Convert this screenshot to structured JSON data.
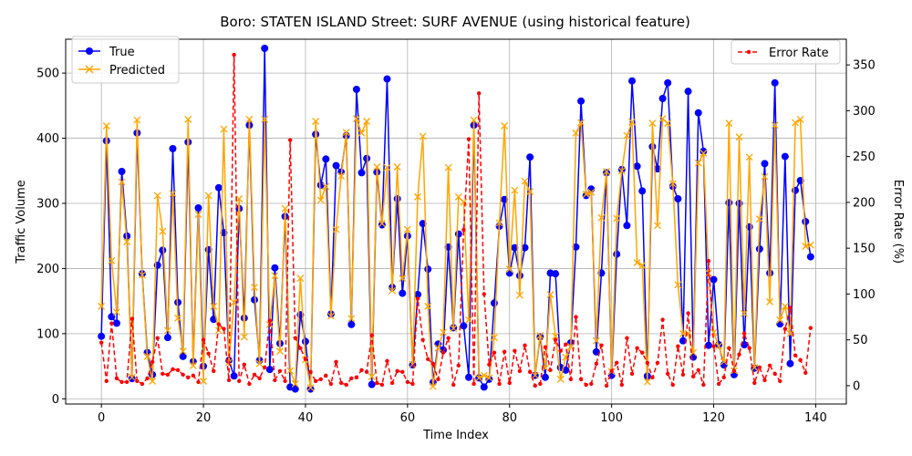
{
  "chart_data": {
    "type": "line",
    "title": "Boro: STATEN ISLAND Street: SURF AVENUE (using historical feature)",
    "xlabel": "Time Index",
    "ylabel": "Traffic Volume",
    "y2label": "Error Rate (%)",
    "xlim": [
      -7,
      146
    ],
    "ylim": [
      -8,
      552
    ],
    "y2lim": [
      -20,
      378
    ],
    "xticks": [
      0,
      20,
      40,
      60,
      80,
      100,
      120,
      140
    ],
    "yticks": [
      0,
      100,
      200,
      300,
      400,
      500
    ],
    "y2ticks": [
      0,
      50,
      100,
      150,
      200,
      250,
      300,
      350
    ],
    "grid": true,
    "legend_left": "upper-left",
    "legend_right": "upper-right",
    "series": [
      {
        "name": "True",
        "axis": "left",
        "color": "#0000ff",
        "style": "solid",
        "marker": "circle",
        "values": [
          96,
          396,
          126,
          116,
          349,
          250,
          31,
          408,
          192,
          71,
          37,
          205,
          228,
          94,
          384,
          148,
          65,
          394,
          57,
          293,
          50,
          229,
          122,
          324,
          255,
          59,
          35,
          292,
          124,
          420,
          152,
          59,
          538,
          45,
          201,
          85,
          280,
          18,
          15,
          129,
          88,
          15,
          406,
          328,
          368,
          130,
          358,
          348,
          404,
          114,
          475,
          347,
          369,
          22,
          348,
          267,
          491,
          171,
          307,
          162,
          250,
          52,
          160,
          269,
          199,
          25,
          84,
          75,
          233,
          109,
          253,
          112,
          33,
          420,
          32,
          18,
          30,
          147,
          265,
          306,
          193,
          232,
          189,
          232,
          371,
          36,
          95,
          33,
          193,
          192,
          48,
          44,
          86,
          233,
          457,
          312,
          322,
          72,
          193,
          347,
          36,
          222,
          352,
          266,
          488,
          357,
          319,
          35,
          387,
          353,
          461,
          485,
          326,
          307,
          89,
          472,
          64,
          439,
          380,
          82,
          183,
          83,
          52,
          301,
          37,
          300,
          83,
          264,
          47,
          230,
          361,
          193,
          485,
          115,
          372,
          54,
          320,
          335,
          272,
          218
        ]
      },
      {
        "name": "Predicted",
        "axis": "left",
        "color": "#ffa500",
        "style": "solid",
        "marker": "x",
        "values": [
          142,
          419,
          212,
          133,
          333,
          241,
          33,
          428,
          190,
          65,
          27,
          312,
          257,
          105,
          315,
          124,
          73,
          429,
          51,
          283,
          27,
          312,
          142,
          105,
          414,
          56,
          148,
          307,
          95,
          429,
          171,
          54,
          429,
          114,
          189,
          73,
          292,
          43,
          23,
          185,
          60,
          17,
          426,
          305,
          326,
          127,
          260,
          342,
          409,
          123,
          430,
          408,
          426,
          34,
          356,
          269,
          355,
          166,
          356,
          185,
          260,
          53,
          310,
          403,
          142,
          19,
          78,
          102,
          355,
          108,
          310,
          302,
          121,
          428,
          32,
          36,
          32,
          94,
          270,
          419,
          199,
          320,
          159,
          334,
          318,
          36,
          97,
          47,
          160,
          96,
          30,
          64,
          80,
          408,
          424,
          314,
          317,
          89,
          278,
          349,
          42,
          277,
          350,
          404,
          425,
          209,
          205,
          26,
          423,
          266,
          430,
          423,
          330,
          175,
          100,
          100,
          71,
          362,
          377,
          193,
          102,
          81,
          57,
          423,
          43,
          402,
          131,
          371,
          48,
          276,
          341,
          149,
          420,
          121,
          142,
          100,
          424,
          429,
          234,
          236
        ]
      },
      {
        "name": "Error Rate",
        "axis": "right",
        "color": "#ff0000",
        "style": "dashed",
        "marker": "dot",
        "values": [
          47,
          5,
          68,
          8,
          4,
          4,
          73,
          5,
          2,
          8,
          26,
          52,
          13,
          12,
          18,
          17,
          12,
          9,
          11,
          4,
          50,
          35,
          16,
          67,
          62,
          6,
          361,
          5,
          23,
          2,
          12,
          8,
          20,
          71,
          6,
          16,
          5,
          268,
          52,
          41,
          29,
          15,
          5,
          7,
          11,
          2,
          26,
          3,
          1,
          8,
          9,
          17,
          15,
          55,
          3,
          1,
          27,
          3,
          16,
          15,
          4,
          2,
          95,
          50,
          29,
          24,
          7,
          36,
          52,
          1,
          22,
          170,
          269,
          2,
          319,
          100,
          23,
          36,
          2,
          37,
          3,
          38,
          16,
          44,
          15,
          0,
          2,
          42,
          17,
          50,
          38,
          45,
          7,
          75,
          7,
          1,
          2,
          24,
          44,
          0,
          16,
          25,
          1,
          52,
          13,
          41,
          36,
          25,
          9,
          25,
          72,
          13,
          1,
          43,
          12,
          79,
          10,
          17,
          1,
          136,
          43,
          2,
          9,
          41,
          16,
          34,
          57,
          41,
          3,
          20,
          6,
          22,
          13,
          5,
          62,
          85,
          33,
          28,
          14,
          63
        ]
      }
    ]
  }
}
